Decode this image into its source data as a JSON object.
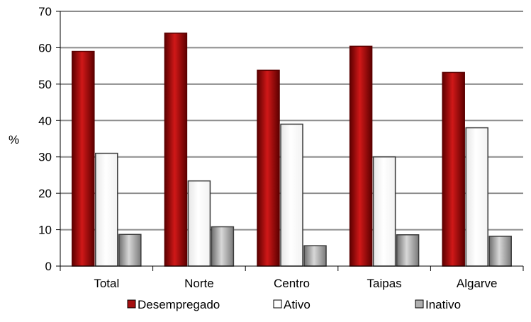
{
  "chart_data": {
    "type": "bar",
    "title": "",
    "xlabel": "",
    "ylabel": "%",
    "ylim": [
      0,
      70
    ],
    "yticks": [
      0,
      10,
      20,
      30,
      40,
      50,
      60,
      70
    ],
    "grid": true,
    "legend_position": "bottom",
    "categories": [
      "Total",
      "Norte",
      "Centro",
      "Taipas",
      "Algarve"
    ],
    "series": [
      {
        "name": "Desempregado",
        "values": [
          59,
          64,
          53.8,
          60.4,
          53.2
        ],
        "color": "#a50f10"
      },
      {
        "name": "Ativo",
        "values": [
          31,
          23.4,
          39,
          30,
          38
        ],
        "color": "#ffffff"
      },
      {
        "name": "Inativo",
        "values": [
          8.7,
          10.8,
          5.6,
          8.6,
          8.2
        ],
        "color": "#b0b0b0"
      }
    ]
  }
}
